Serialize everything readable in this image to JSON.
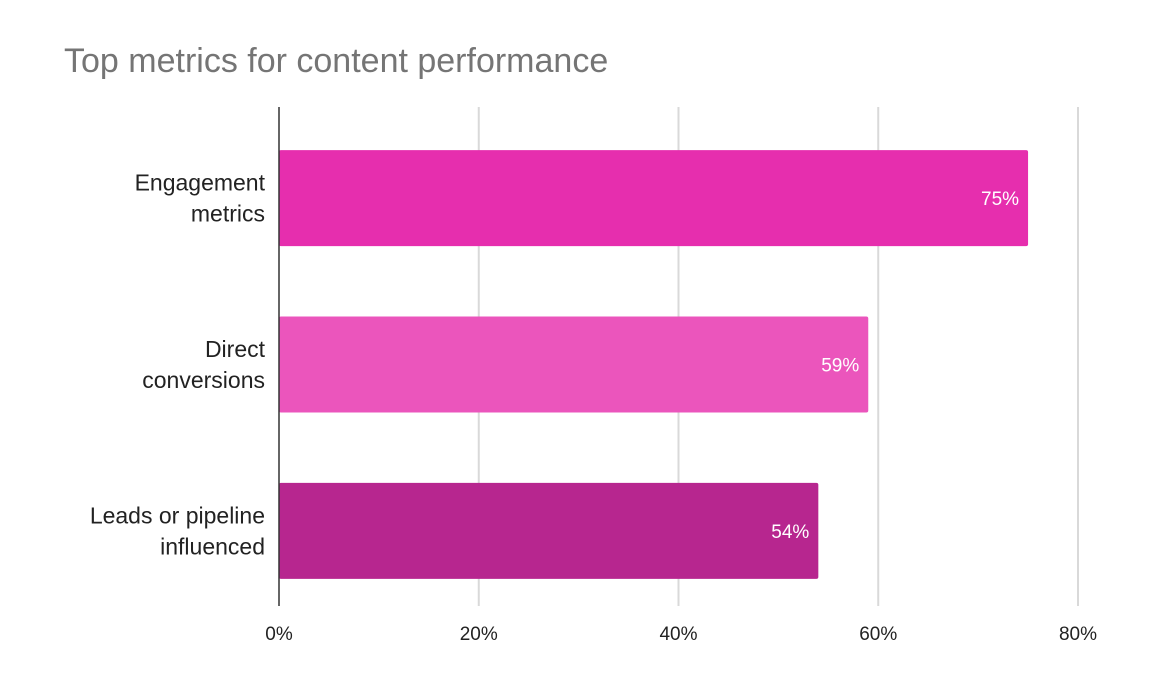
{
  "chart_data": {
    "type": "bar",
    "orientation": "horizontal",
    "title": "Top metrics for content performance",
    "categories": [
      [
        "Engagement",
        "metrics"
      ],
      [
        "Direct",
        "conversions"
      ],
      [
        "Leads or pipeline",
        "influenced"
      ]
    ],
    "values": [
      75,
      59,
      54
    ],
    "data_labels": [
      "75%",
      "59%",
      "54%"
    ],
    "bar_colors": [
      "#e62eae",
      "#eb55bc",
      "#b7268f"
    ],
    "xlim": [
      0,
      80
    ],
    "x_ticks": [
      0,
      20,
      40,
      60,
      80
    ],
    "x_tick_labels": [
      "0%",
      "20%",
      "40%",
      "60%",
      "80%"
    ],
    "grid": true,
    "legend": "none",
    "xlabel": "",
    "ylabel": ""
  }
}
